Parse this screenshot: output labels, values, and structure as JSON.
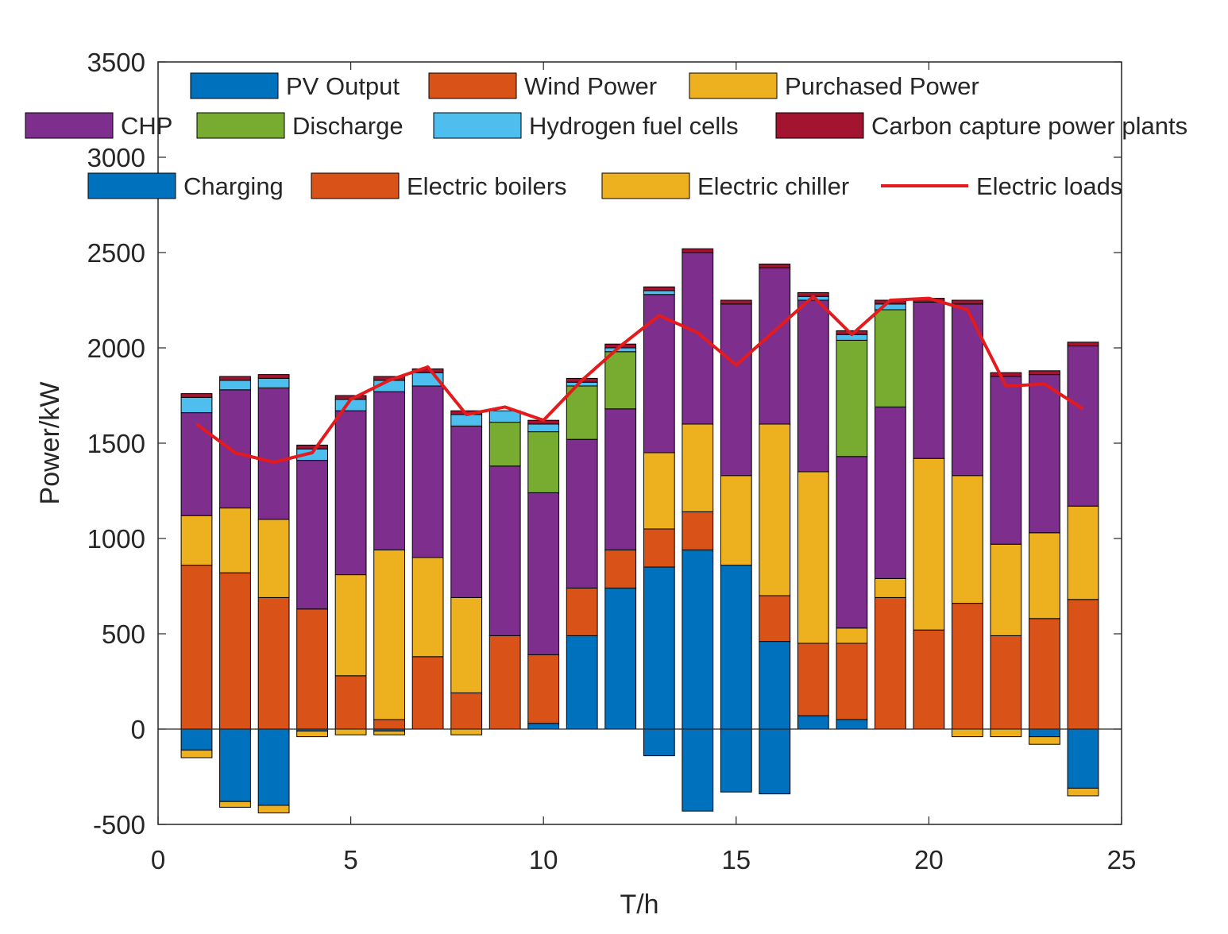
{
  "chart_data": {
    "type": "bar",
    "subtype": "stacked-with-line",
    "xlabel": "T/h",
    "ylabel": "Power/kW",
    "xlim": [
      0,
      25
    ],
    "ylim": [
      -500,
      3500
    ],
    "xticks": [
      "0",
      "5",
      "10",
      "15",
      "20",
      "25"
    ],
    "yticks": [
      "-500",
      "0",
      "500",
      "1000",
      "1500",
      "2000",
      "2500",
      "3000",
      "3500"
    ],
    "x": [
      1,
      2,
      3,
      4,
      5,
      6,
      7,
      8,
      9,
      10,
      11,
      12,
      13,
      14,
      15,
      16,
      17,
      18,
      19,
      20,
      21,
      22,
      23,
      24
    ],
    "series": [
      {
        "name": "PV Output",
        "color": "#0072BD",
        "values": [
          0,
          0,
          0,
          0,
          0,
          0,
          0,
          0,
          0,
          30,
          490,
          740,
          850,
          940,
          860,
          460,
          70,
          50,
          0,
          0,
          0,
          0,
          0,
          0
        ]
      },
      {
        "name": "Wind Power",
        "color": "#D95319",
        "values": [
          860,
          820,
          690,
          630,
          280,
          50,
          380,
          190,
          490,
          360,
          250,
          200,
          200,
          200,
          0,
          240,
          380,
          400,
          690,
          520,
          660,
          490,
          580,
          680
        ]
      },
      {
        "name": "Purchased Power",
        "color": "#EDB120",
        "values": [
          260,
          340,
          410,
          0,
          530,
          890,
          520,
          500,
          0,
          0,
          0,
          0,
          400,
          460,
          470,
          900,
          900,
          80,
          100,
          900,
          670,
          480,
          450,
          490
        ]
      },
      {
        "name": "CHP",
        "color": "#7E2F8E",
        "values": [
          540,
          620,
          690,
          780,
          860,
          830,
          900,
          900,
          890,
          850,
          780,
          740,
          830,
          900,
          900,
          820,
          900,
          900,
          900,
          820,
          900,
          880,
          830,
          840
        ]
      },
      {
        "name": "Discharge",
        "color": "#77AC30",
        "values": [
          0,
          0,
          0,
          0,
          0,
          0,
          0,
          0,
          230,
          320,
          280,
          300,
          0,
          0,
          0,
          0,
          0,
          610,
          510,
          0,
          0,
          0,
          0,
          0
        ]
      },
      {
        "name": "Hydrogen fuel cells",
        "color": "#4DBEEE",
        "values": [
          80,
          50,
          50,
          60,
          60,
          60,
          70,
          60,
          60,
          40,
          20,
          20,
          20,
          0,
          0,
          0,
          20,
          30,
          30,
          0,
          0,
          0,
          0,
          0
        ]
      },
      {
        "name": "Carbon capture power plants",
        "color": "#A2142F",
        "values": [
          20,
          20,
          20,
          20,
          20,
          20,
          20,
          20,
          0,
          20,
          20,
          20,
          20,
          20,
          20,
          20,
          20,
          20,
          20,
          20,
          20,
          20,
          20,
          20
        ]
      },
      {
        "name": "Charging",
        "color": "#0072BD",
        "values": [
          -110,
          -380,
          -400,
          -10,
          0,
          -10,
          0,
          0,
          0,
          0,
          0,
          0,
          -140,
          -430,
          -330,
          -340,
          0,
          0,
          0,
          0,
          0,
          0,
          -40,
          -310
        ]
      },
      {
        "name": "Electric boilers",
        "color": "#D95319",
        "values": [
          0,
          0,
          0,
          0,
          0,
          0,
          0,
          0,
          0,
          0,
          0,
          0,
          0,
          0,
          0,
          0,
          0,
          0,
          0,
          0,
          0,
          0,
          0,
          0
        ]
      },
      {
        "name": "Electric chiller",
        "color": "#EDB120",
        "values": [
          -40,
          -30,
          -40,
          -30,
          -30,
          -20,
          0,
          -30,
          0,
          0,
          0,
          0,
          0,
          0,
          0,
          0,
          0,
          0,
          0,
          0,
          -40,
          -40,
          -40,
          -40
        ]
      },
      {
        "name": "Electric loads",
        "type": "line",
        "color": "#E41A1C",
        "values": [
          1600,
          1450,
          1400,
          1450,
          1730,
          1830,
          1900,
          1650,
          1690,
          1620,
          1830,
          2010,
          2170,
          2080,
          1910,
          2090,
          2270,
          2070,
          2250,
          2260,
          2200,
          1800,
          1810,
          1680
        ]
      }
    ],
    "legend": {
      "placement": "top, inside plot, 4 rows",
      "rows": [
        [
          "PV Output",
          "Wind Power",
          "Purchased Power"
        ],
        [
          "CHP",
          "Discharge",
          "Hydrogen fuel cells",
          "Carbon capture power plants"
        ],
        [
          "Charging",
          "Electric boilers",
          "Electric chiller",
          "Electric loads"
        ]
      ]
    }
  }
}
